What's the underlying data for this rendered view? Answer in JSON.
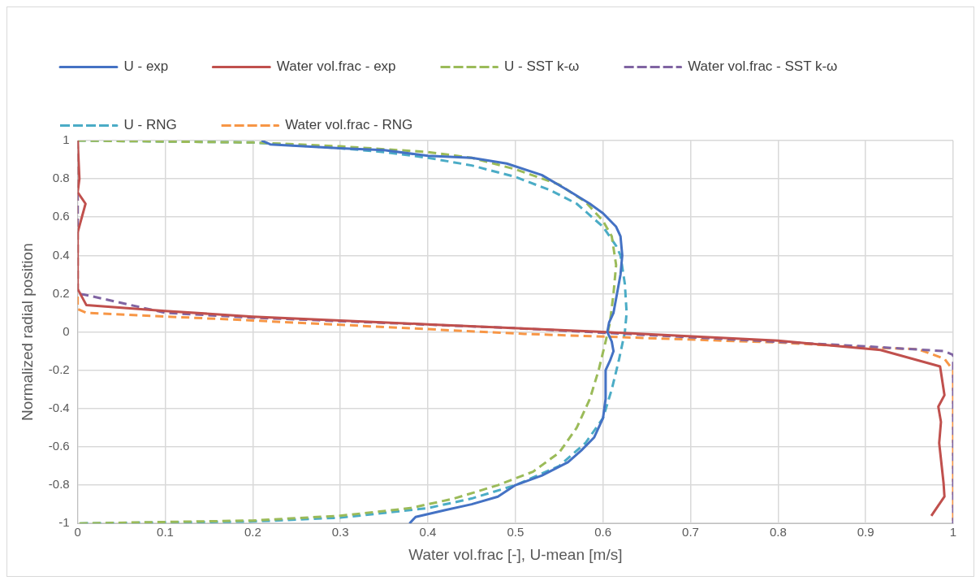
{
  "chart_data": {
    "type": "line",
    "xlabel": "Water vol.frac [-], U-mean [m/s]",
    "ylabel": "Normalized radial position",
    "xlim": [
      0,
      1
    ],
    "xticks": [
      0,
      0.1,
      0.2,
      0.3,
      0.4,
      0.5,
      0.6,
      0.7,
      0.8,
      0.9,
      1
    ],
    "ylim": [
      -1,
      1
    ],
    "yticks": [
      -1,
      -0.8,
      -0.6,
      -0.4,
      -0.2,
      0,
      0.2,
      0.4,
      0.6,
      0.8,
      1
    ],
    "grid": true,
    "legend": "top",
    "marker": "none",
    "series": [
      {
        "name": "U - exp",
        "color": "#4472c4",
        "line_style": "solid",
        "x": [
          0.21,
          0.22,
          0.3,
          0.35,
          0.4,
          0.45,
          0.49,
          0.53,
          0.56,
          0.585,
          0.6,
          0.615,
          0.62,
          0.622,
          0.62,
          0.616,
          0.612,
          0.607,
          0.605,
          0.61,
          0.612,
          0.608,
          0.603,
          0.603,
          0.6,
          0.59,
          0.575,
          0.56,
          0.53,
          0.5,
          0.48,
          0.45,
          0.42,
          0.386,
          0.379
        ],
        "values": [
          1,
          0.98,
          0.96,
          0.95,
          0.92,
          0.91,
          0.88,
          0.82,
          0.74,
          0.67,
          0.62,
          0.55,
          0.5,
          0.4,
          0.3,
          0.2,
          0.1,
          0.05,
          0,
          -0.05,
          -0.1,
          -0.15,
          -0.2,
          -0.35,
          -0.45,
          -0.55,
          -0.62,
          -0.68,
          -0.75,
          -0.8,
          -0.86,
          -0.9,
          -0.93,
          -0.966,
          -1
        ]
      },
      {
        "name": "Water vol.frac - exp",
        "color": "#c0504d",
        "line_style": "solid",
        "x": [
          0,
          0.002,
          0,
          0.009,
          0,
          0,
          0.01,
          0.1,
          0.2,
          0.4,
          0.6,
          0.8,
          0.917,
          0.985,
          0.99,
          0.983,
          0.986,
          0.984,
          0.989,
          0.99,
          0.975
        ],
        "values": [
          1,
          0.8,
          0.73,
          0.67,
          0.52,
          0.225,
          0.14,
          0.11,
          0.08,
          0.04,
          0,
          -0.045,
          -0.094,
          -0.18,
          -0.33,
          -0.39,
          -0.47,
          -0.58,
          -0.79,
          -0.86,
          -0.96
        ]
      },
      {
        "name": "U - SST k-ω",
        "color": "#9bbb59",
        "line_style": "dashed",
        "x": [
          0,
          0.2,
          0.3,
          0.4,
          0.45,
          0.5,
          0.55,
          0.58,
          0.6,
          0.61,
          0.615,
          0.612,
          0.608,
          0.603,
          0.595,
          0.585,
          0.57,
          0.55,
          0.52,
          0.48,
          0.43,
          0.38,
          0.3,
          0.2,
          0
        ],
        "values": [
          1,
          0.99,
          0.97,
          0.94,
          0.91,
          0.85,
          0.77,
          0.68,
          0.58,
          0.5,
          0.35,
          0.2,
          0.05,
          -0.05,
          -0.2,
          -0.35,
          -0.5,
          -0.63,
          -0.73,
          -0.8,
          -0.87,
          -0.92,
          -0.96,
          -0.985,
          -1
        ]
      },
      {
        "name": "Water vol.frac - SST k-ω",
        "color": "#8064a2",
        "line_style": "dashed",
        "x": [
          0,
          0,
          0.007,
          0.1,
          0.2,
          0.5,
          0.9,
          0.99,
          1,
          1
        ],
        "values": [
          1,
          0.2,
          0.196,
          0.1,
          0.075,
          0.02,
          -0.075,
          -0.1,
          -0.12,
          -1
        ]
      },
      {
        "name": "U - RNG",
        "color": "#4bacc6",
        "line_style": "dashed",
        "x": [
          0,
          0.2,
          0.3,
          0.35,
          0.4,
          0.45,
          0.5,
          0.54,
          0.57,
          0.6,
          0.615,
          0.62,
          0.625,
          0.627,
          0.625,
          0.618,
          0.61,
          0.6,
          0.58,
          0.55,
          0.5,
          0.45,
          0.4,
          0.3,
          0.2,
          0
        ],
        "values": [
          1,
          0.99,
          0.96,
          0.94,
          0.91,
          0.87,
          0.81,
          0.74,
          0.67,
          0.55,
          0.45,
          0.4,
          0.25,
          0.1,
          0,
          -0.15,
          -0.3,
          -0.45,
          -0.58,
          -0.7,
          -0.8,
          -0.87,
          -0.92,
          -0.97,
          -0.99,
          -1
        ]
      },
      {
        "name": "Water vol.frac - RNG",
        "color": "#f79646",
        "line_style": "dashed",
        "x": [
          0,
          0,
          0.01,
          0.2,
          0.51,
          0.8,
          0.9,
          0.96,
          0.99,
          1,
          1
        ],
        "values": [
          1,
          0.12,
          0.1,
          0.06,
          -0.01,
          -0.055,
          -0.08,
          -0.09,
          -0.14,
          -0.2,
          -1
        ]
      }
    ]
  }
}
